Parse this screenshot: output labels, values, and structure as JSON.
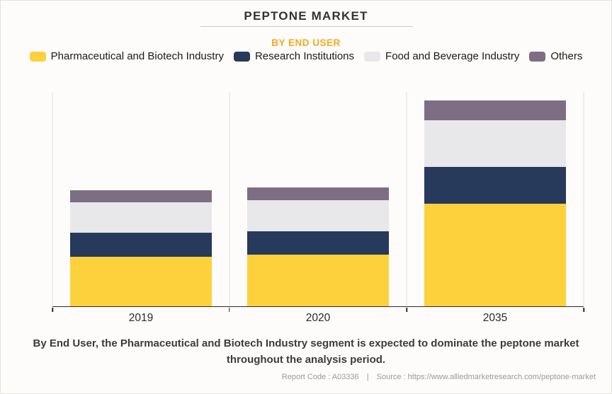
{
  "header": {
    "title": "PEPTONE MARKET",
    "subtitle": "BY END USER"
  },
  "colors": {
    "subtitle_accent": "#F7A823",
    "axis": "#2B2B2B",
    "gridline": "#E0DEDB",
    "background": "#FDFCFA"
  },
  "chart_data": {
    "type": "bar",
    "stacked": true,
    "title": "PEPTONE MARKET",
    "subtitle": "BY END USER",
    "categories": [
      "2019",
      "2020",
      "2035"
    ],
    "series": [
      {
        "name": "Pharmaceutical and Biotech Industry",
        "color": "#FDD13C",
        "values": [
          23.2,
          24.1,
          48.0
        ]
      },
      {
        "name": "Research Institutions",
        "color": "#273A5B",
        "values": [
          11.0,
          10.8,
          16.9
        ]
      },
      {
        "name": "Food and Beverage Industry",
        "color": "#E8E8EA",
        "values": [
          14.2,
          14.5,
          21.9
        ]
      },
      {
        "name": "Others",
        "color": "#7D6E84",
        "values": [
          5.6,
          5.9,
          9.1
        ]
      }
    ],
    "xlabel": "",
    "ylabel": "",
    "ylim": [
      0,
      100
    ],
    "y_axis_visible": false,
    "grid": "vertical-category-separators",
    "legend_position": "top"
  },
  "footer": {
    "statement_line1": "By End User, the Pharmaceutical and Biotech Industry segment is expected to dominate the peptone market",
    "statement_line2": "throughout the analysis period.",
    "report_code": "Report Code : A03336",
    "divider": "|",
    "source": "Source : https://www.alliedmarketresearch.com/peptone-market"
  }
}
